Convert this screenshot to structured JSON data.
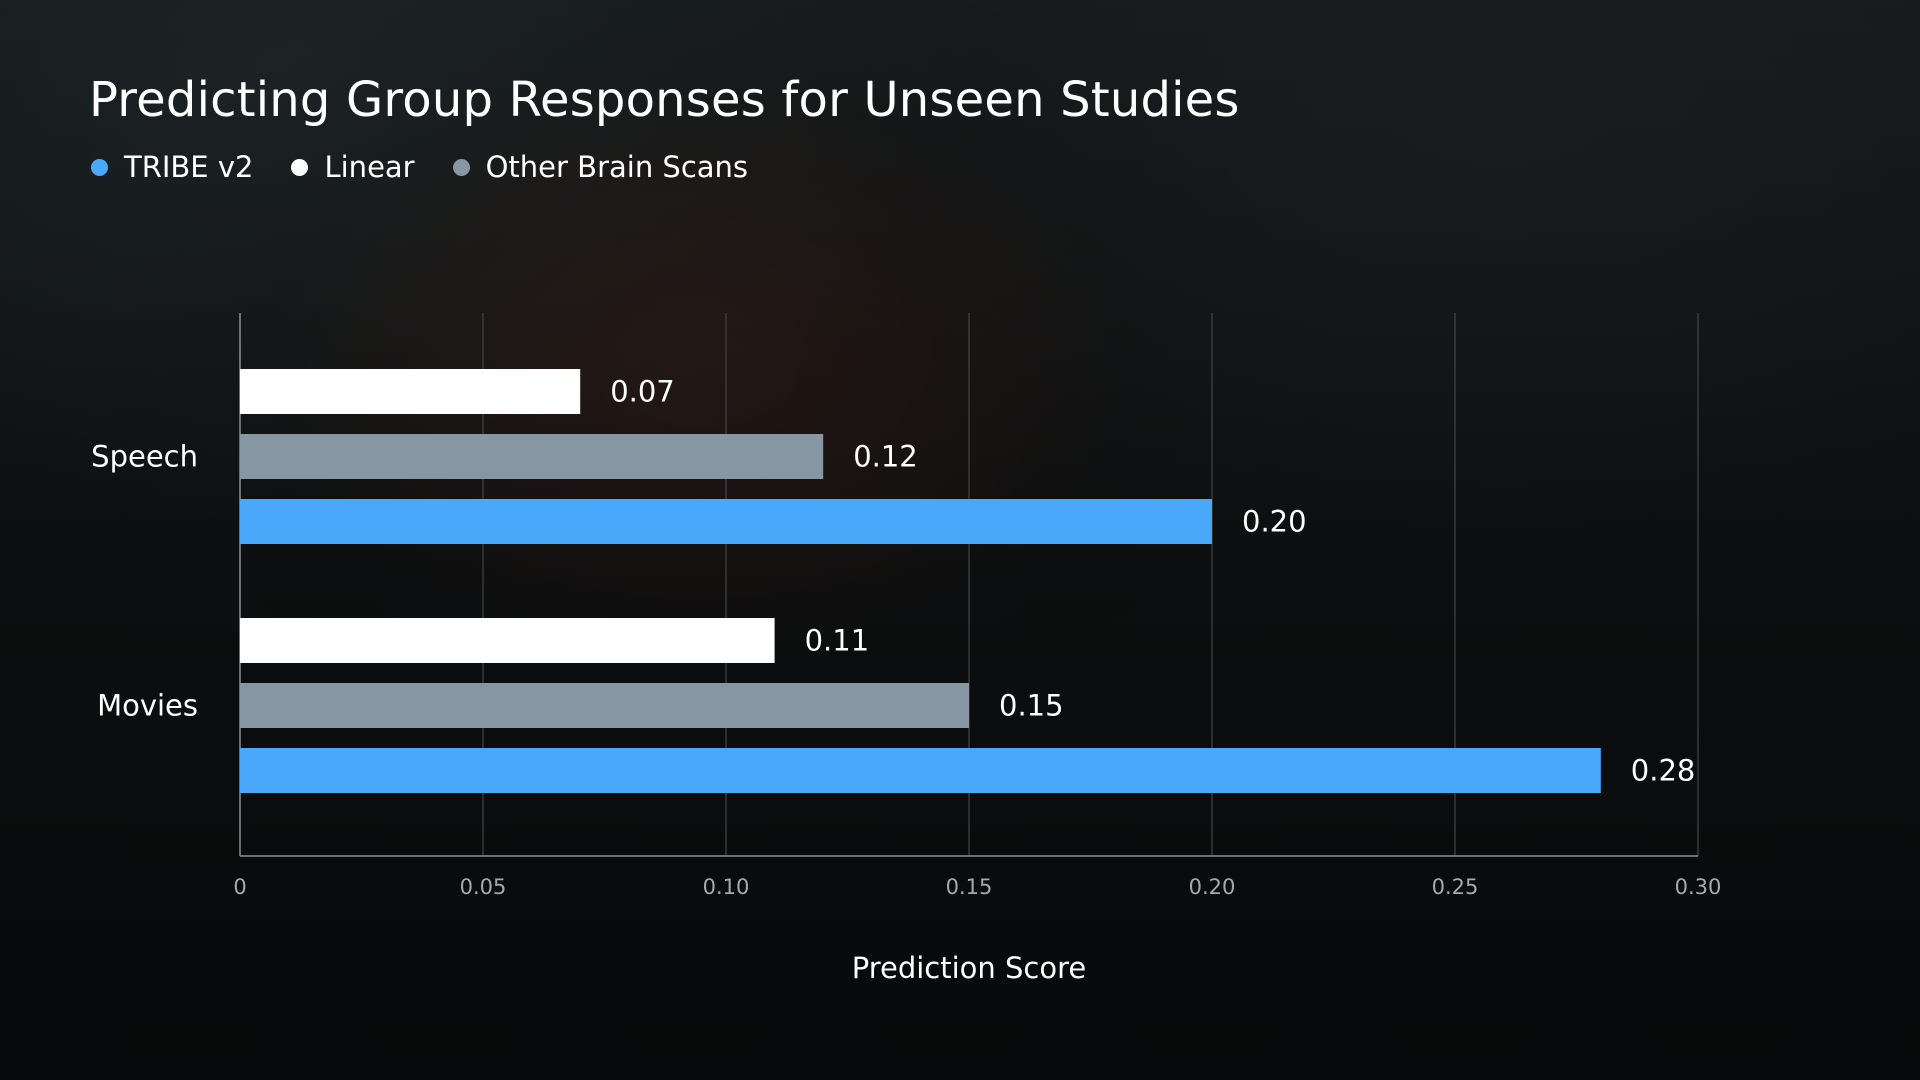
{
  "chart_data": {
    "type": "bar",
    "orientation": "horizontal",
    "title": "Predicting Group Responses for Unseen Studies",
    "xlabel": "Prediction Score",
    "ylabel": "",
    "xlim": [
      0,
      0.3
    ],
    "xticks": [
      {
        "value": 0,
        "label": "0"
      },
      {
        "value": 0.05,
        "label": "0.05"
      },
      {
        "value": 0.1,
        "label": "0.10"
      },
      {
        "value": 0.15,
        "label": "0.15"
      },
      {
        "value": 0.2,
        "label": "0.20"
      },
      {
        "value": 0.25,
        "label": "0.25"
      },
      {
        "value": 0.3,
        "label": "0.30"
      }
    ],
    "grid": "vertical",
    "legend_position": "top-left",
    "categories": [
      "Speech",
      "Movies"
    ],
    "series": [
      {
        "name": "Linear",
        "color": "#ffffff",
        "values": [
          0.07,
          0.11
        ],
        "labels": [
          "0.07",
          "0.11"
        ]
      },
      {
        "name": "Other Brain Scans",
        "color": "#8796a3",
        "values": [
          0.12,
          0.15
        ],
        "labels": [
          "0.12",
          "0.15"
        ]
      },
      {
        "name": "TRIBE v2",
        "color": "#4aa8fb",
        "values": [
          0.2,
          0.28
        ],
        "labels": [
          "0.20",
          "0.28"
        ]
      }
    ],
    "legend": [
      {
        "name": "TRIBE v2",
        "color": "#4aa8fb"
      },
      {
        "name": "Linear",
        "color": "#ffffff"
      },
      {
        "name": "Other Brain Scans",
        "color": "#8796a3"
      }
    ]
  }
}
